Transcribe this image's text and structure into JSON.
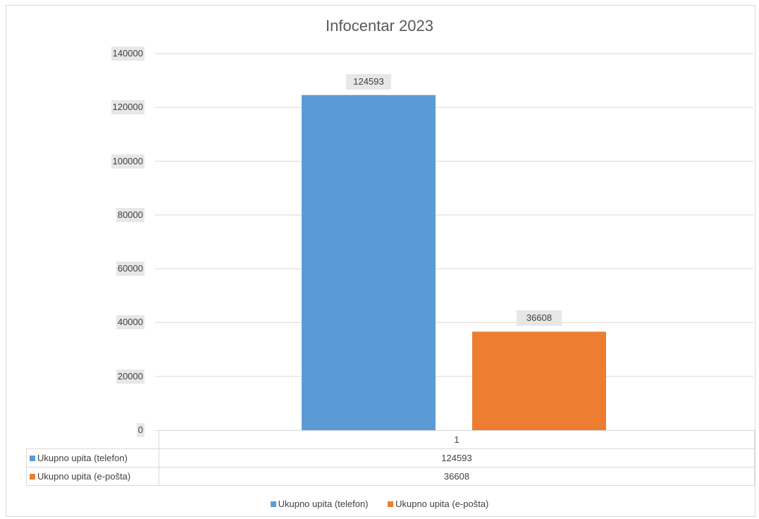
{
  "chart_data": {
    "type": "bar",
    "title": "Infocentar 2023",
    "categories": [
      "1"
    ],
    "series": [
      {
        "name": "Ukupno upita (telefon)",
        "values": [
          124593
        ],
        "color": "#5b9bd5"
      },
      {
        "name": "Ukupno upita (e-pošta)",
        "values": [
          36608
        ],
        "color": "#ed7d31"
      }
    ],
    "ylim": [
      0,
      140000
    ],
    "yticks": [
      "0",
      "20000",
      "40000",
      "60000",
      "80000",
      "100000",
      "120000",
      "140000"
    ],
    "data_labels": [
      "124593",
      "36608"
    ],
    "grid": true,
    "data_table": true,
    "legend": "bottom"
  }
}
